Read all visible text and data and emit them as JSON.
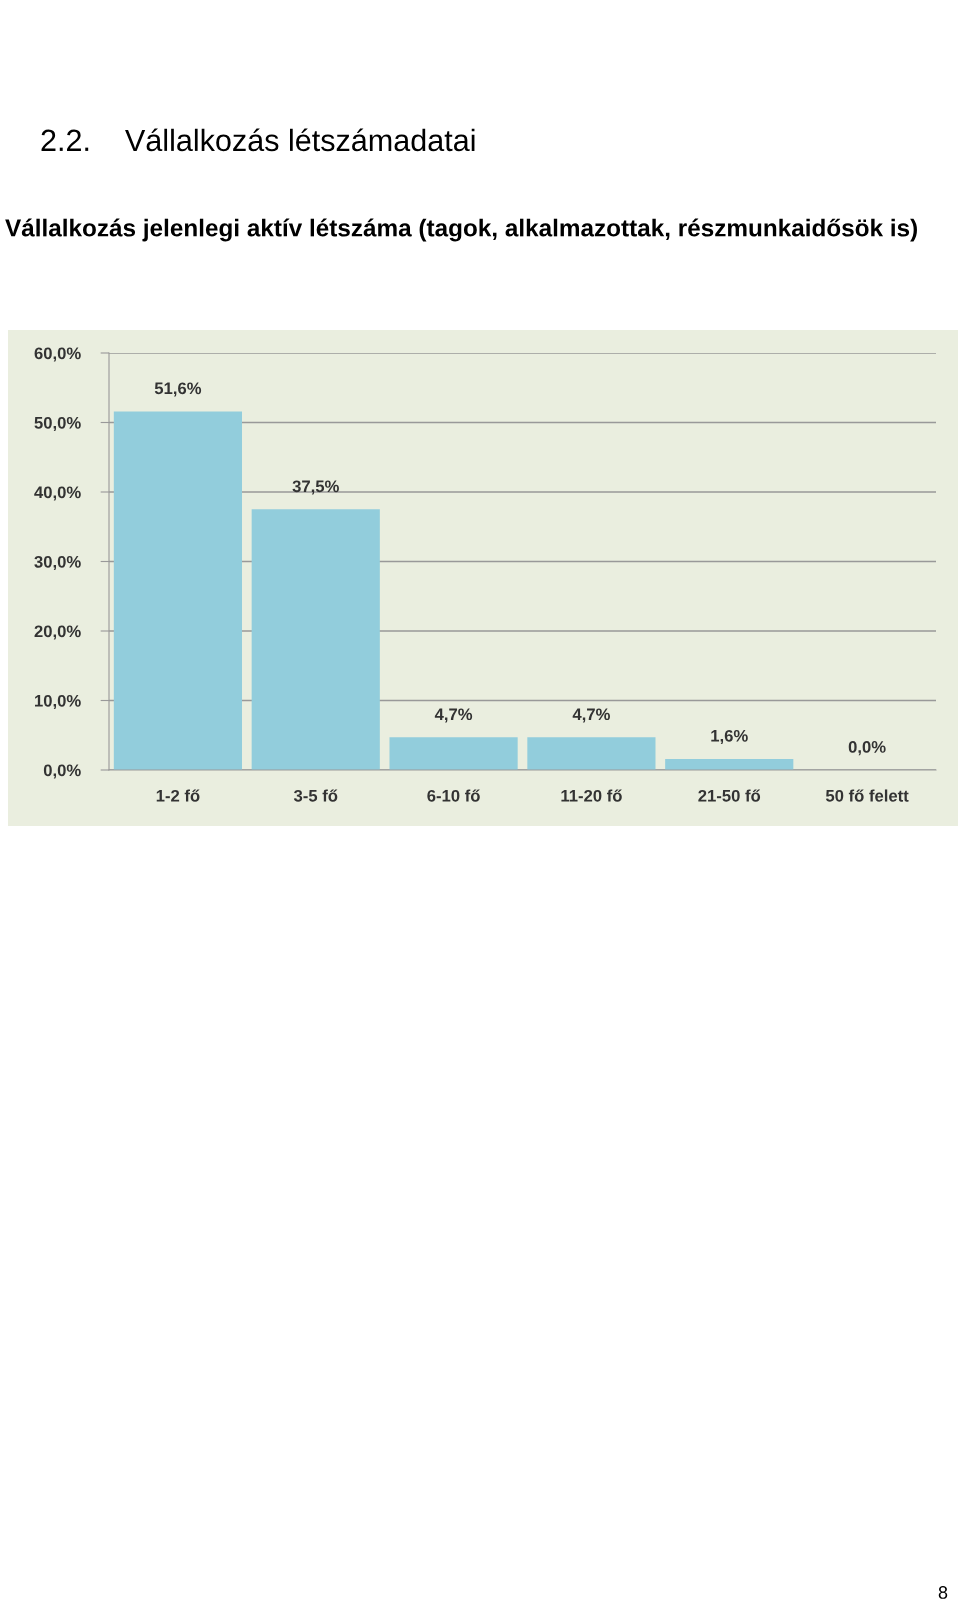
{
  "chart_data": {
    "type": "bar",
    "title": "2.2.    Vállalkozás létszámadatai",
    "subtitle": "Vállalkozás jelenlegi aktív létszáma (tagok, alkalmazottak, részmunkaidősök is)",
    "categories": [
      "1-2 fő",
      "3-5 fő",
      "6-10 fő",
      "11-20 fő",
      "21-50 fő",
      "50 fő felett"
    ],
    "values": [
      51.6,
      37.5,
      4.7,
      4.7,
      1.6,
      0.0
    ],
    "value_labels": [
      "51,6%",
      "37,5%",
      "4,7%",
      "4,7%",
      "1,6%",
      "0,0%"
    ],
    "color": "#92cddc",
    "ylim": [
      0,
      60
    ],
    "yticks": [
      {
        "value": 0,
        "label": "0,0%"
      },
      {
        "value": 10,
        "label": "10,0%"
      },
      {
        "value": 20,
        "label": "20,0%"
      },
      {
        "value": 30,
        "label": "30,0%"
      },
      {
        "value": 40,
        "label": "40,0%"
      },
      {
        "value": 50,
        "label": "50,0%"
      },
      {
        "value": 60,
        "label": "60,0%"
      }
    ],
    "grid": "y",
    "annotations": [
      "8"
    ]
  }
}
